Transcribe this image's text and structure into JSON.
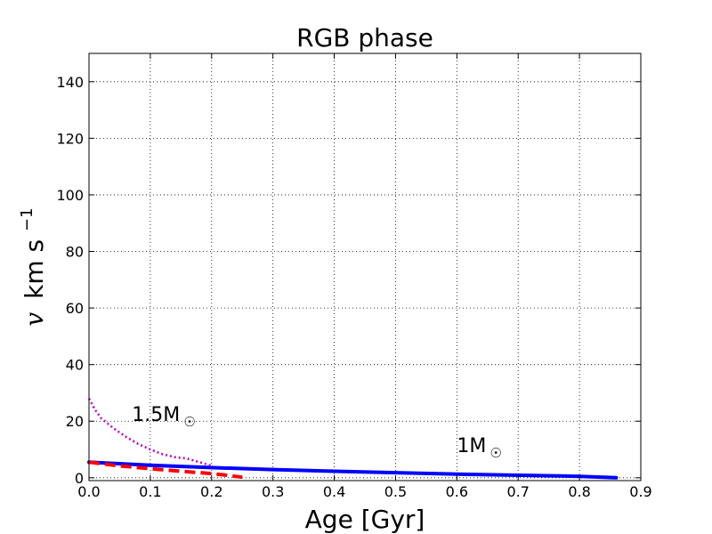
{
  "chart_data": {
    "type": "line",
    "title": "RGB phase",
    "xlabel": "Age [Gyr]",
    "ylabel": {
      "var": "v",
      "unit": "km s",
      "exp": "−1"
    },
    "xlim": [
      0.0,
      0.9
    ],
    "ylim": [
      -1,
      150
    ],
    "xticks": [
      "0.0",
      "0.1",
      "0.2",
      "0.3",
      "0.4",
      "0.5",
      "0.6",
      "0.7",
      "0.8",
      "0.9"
    ],
    "yticks": [
      "0",
      "20",
      "40",
      "60",
      "80",
      "100",
      "120",
      "140"
    ],
    "grid": true,
    "series": [
      {
        "color": "#0000ff",
        "style": "solid",
        "x": [
          0.0,
          0.1,
          0.2,
          0.3,
          0.4,
          0.5,
          0.6,
          0.7,
          0.8,
          0.86
        ],
        "y": [
          5.5,
          4.4,
          3.6,
          2.9,
          2.3,
          1.8,
          1.3,
          0.9,
          0.5,
          0.0
        ]
      },
      {
        "color": "#ff0000",
        "style": "dashed",
        "x": [
          0.0,
          0.05,
          0.1,
          0.15,
          0.2,
          0.22,
          0.25
        ],
        "y": [
          5.5,
          4.2,
          3.2,
          2.3,
          1.5,
          1.0,
          0.2
        ]
      },
      {
        "color": "#bf00bf",
        "style": "dotted",
        "x": [
          0.0,
          0.01,
          0.02,
          0.04,
          0.06,
          0.08,
          0.1,
          0.12,
          0.14,
          0.16,
          0.18,
          0.2
        ],
        "y": [
          28,
          24,
          21,
          17.5,
          14.5,
          12,
          10,
          8.3,
          7.3,
          6.8,
          5.5,
          4.3
        ]
      }
    ],
    "annotations": [
      {
        "text": "1.5M",
        "symbol": "☉",
        "x": 0.07,
        "y": 20
      },
      {
        "text": "1M",
        "symbol": "☉",
        "x": 0.6,
        "y": 9
      }
    ]
  }
}
